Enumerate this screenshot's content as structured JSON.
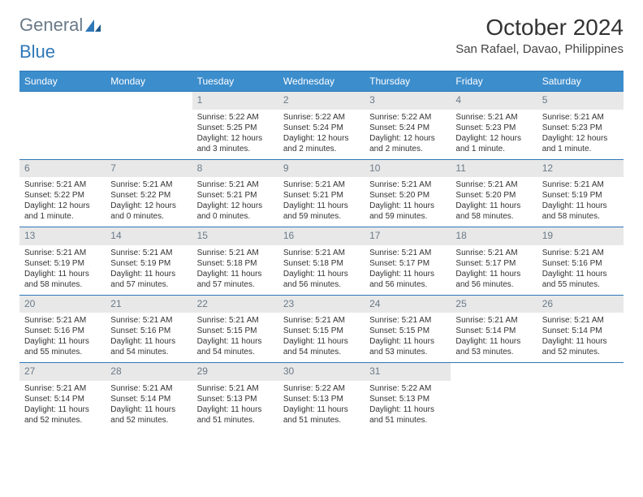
{
  "logo": {
    "text1": "General",
    "text2": "Blue"
  },
  "title": "October 2024",
  "location": "San Rafael, Davao, Philippines",
  "colors": {
    "header_bg": "#3c8dcc",
    "header_border": "#2f78b8",
    "daynum_bg": "#e8e8e8",
    "daynum_color": "#6a7a88",
    "text": "#333333",
    "background": "#ffffff"
  },
  "day_headers": [
    "Sunday",
    "Monday",
    "Tuesday",
    "Wednesday",
    "Thursday",
    "Friday",
    "Saturday"
  ],
  "weeks": [
    [
      {
        "n": "",
        "empty": true
      },
      {
        "n": "",
        "empty": true
      },
      {
        "n": "1",
        "sr": "Sunrise: 5:22 AM",
        "ss": "Sunset: 5:25 PM",
        "dl1": "Daylight: 12 hours",
        "dl2": "and 3 minutes."
      },
      {
        "n": "2",
        "sr": "Sunrise: 5:22 AM",
        "ss": "Sunset: 5:24 PM",
        "dl1": "Daylight: 12 hours",
        "dl2": "and 2 minutes."
      },
      {
        "n": "3",
        "sr": "Sunrise: 5:22 AM",
        "ss": "Sunset: 5:24 PM",
        "dl1": "Daylight: 12 hours",
        "dl2": "and 2 minutes."
      },
      {
        "n": "4",
        "sr": "Sunrise: 5:21 AM",
        "ss": "Sunset: 5:23 PM",
        "dl1": "Daylight: 12 hours",
        "dl2": "and 1 minute."
      },
      {
        "n": "5",
        "sr": "Sunrise: 5:21 AM",
        "ss": "Sunset: 5:23 PM",
        "dl1": "Daylight: 12 hours",
        "dl2": "and 1 minute."
      }
    ],
    [
      {
        "n": "6",
        "sr": "Sunrise: 5:21 AM",
        "ss": "Sunset: 5:22 PM",
        "dl1": "Daylight: 12 hours",
        "dl2": "and 1 minute."
      },
      {
        "n": "7",
        "sr": "Sunrise: 5:21 AM",
        "ss": "Sunset: 5:22 PM",
        "dl1": "Daylight: 12 hours",
        "dl2": "and 0 minutes."
      },
      {
        "n": "8",
        "sr": "Sunrise: 5:21 AM",
        "ss": "Sunset: 5:21 PM",
        "dl1": "Daylight: 12 hours",
        "dl2": "and 0 minutes."
      },
      {
        "n": "9",
        "sr": "Sunrise: 5:21 AM",
        "ss": "Sunset: 5:21 PM",
        "dl1": "Daylight: 11 hours",
        "dl2": "and 59 minutes."
      },
      {
        "n": "10",
        "sr": "Sunrise: 5:21 AM",
        "ss": "Sunset: 5:20 PM",
        "dl1": "Daylight: 11 hours",
        "dl2": "and 59 minutes."
      },
      {
        "n": "11",
        "sr": "Sunrise: 5:21 AM",
        "ss": "Sunset: 5:20 PM",
        "dl1": "Daylight: 11 hours",
        "dl2": "and 58 minutes."
      },
      {
        "n": "12",
        "sr": "Sunrise: 5:21 AM",
        "ss": "Sunset: 5:19 PM",
        "dl1": "Daylight: 11 hours",
        "dl2": "and 58 minutes."
      }
    ],
    [
      {
        "n": "13",
        "sr": "Sunrise: 5:21 AM",
        "ss": "Sunset: 5:19 PM",
        "dl1": "Daylight: 11 hours",
        "dl2": "and 58 minutes."
      },
      {
        "n": "14",
        "sr": "Sunrise: 5:21 AM",
        "ss": "Sunset: 5:19 PM",
        "dl1": "Daylight: 11 hours",
        "dl2": "and 57 minutes."
      },
      {
        "n": "15",
        "sr": "Sunrise: 5:21 AM",
        "ss": "Sunset: 5:18 PM",
        "dl1": "Daylight: 11 hours",
        "dl2": "and 57 minutes."
      },
      {
        "n": "16",
        "sr": "Sunrise: 5:21 AM",
        "ss": "Sunset: 5:18 PM",
        "dl1": "Daylight: 11 hours",
        "dl2": "and 56 minutes."
      },
      {
        "n": "17",
        "sr": "Sunrise: 5:21 AM",
        "ss": "Sunset: 5:17 PM",
        "dl1": "Daylight: 11 hours",
        "dl2": "and 56 minutes."
      },
      {
        "n": "18",
        "sr": "Sunrise: 5:21 AM",
        "ss": "Sunset: 5:17 PM",
        "dl1": "Daylight: 11 hours",
        "dl2": "and 56 minutes."
      },
      {
        "n": "19",
        "sr": "Sunrise: 5:21 AM",
        "ss": "Sunset: 5:16 PM",
        "dl1": "Daylight: 11 hours",
        "dl2": "and 55 minutes."
      }
    ],
    [
      {
        "n": "20",
        "sr": "Sunrise: 5:21 AM",
        "ss": "Sunset: 5:16 PM",
        "dl1": "Daylight: 11 hours",
        "dl2": "and 55 minutes."
      },
      {
        "n": "21",
        "sr": "Sunrise: 5:21 AM",
        "ss": "Sunset: 5:16 PM",
        "dl1": "Daylight: 11 hours",
        "dl2": "and 54 minutes."
      },
      {
        "n": "22",
        "sr": "Sunrise: 5:21 AM",
        "ss": "Sunset: 5:15 PM",
        "dl1": "Daylight: 11 hours",
        "dl2": "and 54 minutes."
      },
      {
        "n": "23",
        "sr": "Sunrise: 5:21 AM",
        "ss": "Sunset: 5:15 PM",
        "dl1": "Daylight: 11 hours",
        "dl2": "and 54 minutes."
      },
      {
        "n": "24",
        "sr": "Sunrise: 5:21 AM",
        "ss": "Sunset: 5:15 PM",
        "dl1": "Daylight: 11 hours",
        "dl2": "and 53 minutes."
      },
      {
        "n": "25",
        "sr": "Sunrise: 5:21 AM",
        "ss": "Sunset: 5:14 PM",
        "dl1": "Daylight: 11 hours",
        "dl2": "and 53 minutes."
      },
      {
        "n": "26",
        "sr": "Sunrise: 5:21 AM",
        "ss": "Sunset: 5:14 PM",
        "dl1": "Daylight: 11 hours",
        "dl2": "and 52 minutes."
      }
    ],
    [
      {
        "n": "27",
        "sr": "Sunrise: 5:21 AM",
        "ss": "Sunset: 5:14 PM",
        "dl1": "Daylight: 11 hours",
        "dl2": "and 52 minutes."
      },
      {
        "n": "28",
        "sr": "Sunrise: 5:21 AM",
        "ss": "Sunset: 5:14 PM",
        "dl1": "Daylight: 11 hours",
        "dl2": "and 52 minutes."
      },
      {
        "n": "29",
        "sr": "Sunrise: 5:21 AM",
        "ss": "Sunset: 5:13 PM",
        "dl1": "Daylight: 11 hours",
        "dl2": "and 51 minutes."
      },
      {
        "n": "30",
        "sr": "Sunrise: 5:22 AM",
        "ss": "Sunset: 5:13 PM",
        "dl1": "Daylight: 11 hours",
        "dl2": "and 51 minutes."
      },
      {
        "n": "31",
        "sr": "Sunrise: 5:22 AM",
        "ss": "Sunset: 5:13 PM",
        "dl1": "Daylight: 11 hours",
        "dl2": "and 51 minutes."
      },
      {
        "n": "",
        "empty": true
      },
      {
        "n": "",
        "empty": true
      }
    ]
  ]
}
